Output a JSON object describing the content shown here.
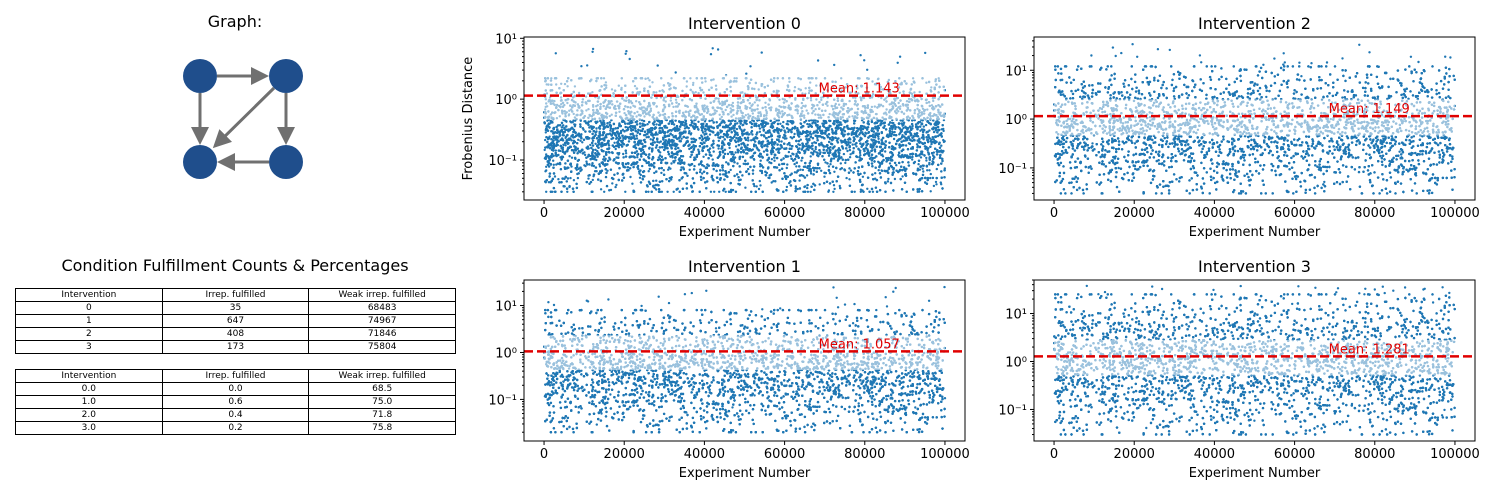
{
  "graph_panel": {
    "title": "Graph:",
    "node_color": "#1f4e8c",
    "edge_color": "#707070",
    "edges": [
      [
        "A",
        "B"
      ],
      [
        "A",
        "C"
      ],
      [
        "B",
        "C"
      ],
      [
        "B",
        "D"
      ],
      [
        "D",
        "C"
      ]
    ]
  },
  "table_panel": {
    "title": "Condition Fulfillment Counts & Percentages",
    "counts": {
      "header": [
        "Intervention",
        "Irrep. fulfilled",
        "Weak irrep. fulfilled"
      ],
      "rows": [
        [
          "0",
          "35",
          "68483"
        ],
        [
          "1",
          "647",
          "74967"
        ],
        [
          "2",
          "408",
          "71846"
        ],
        [
          "3",
          "173",
          "75804"
        ]
      ]
    },
    "percentages": {
      "header": [
        "Intervention",
        "Irrep. fulfilled",
        "Weak irrep. fulfilled"
      ],
      "rows": [
        [
          "0.0",
          "0.0",
          "68.5"
        ],
        [
          "1.0",
          "0.6",
          "75.0"
        ],
        [
          "2.0",
          "0.4",
          "71.8"
        ],
        [
          "3.0",
          "0.2",
          "75.8"
        ]
      ]
    }
  },
  "chart_data": [
    {
      "type": "scatter",
      "title": "Intervention 0",
      "xlabel": "Experiment Number",
      "ylabel": "Frobenius Distance",
      "yscale": "log",
      "xlim": [
        -5000,
        105000
      ],
      "ylim": [
        0.022,
        10.5
      ],
      "y_lo": 0.03,
      "y_hi": 2.2,
      "outlier_max": 7,
      "xticks": [
        0,
        20000,
        40000,
        60000,
        80000,
        100000
      ],
      "yticks": [
        {
          "v": 0.1,
          "label": "10⁻¹"
        },
        {
          "v": 1,
          "label": "10⁰"
        },
        {
          "v": 10,
          "label": "10¹"
        }
      ],
      "n_experiments": 100000,
      "point_color": "#1f77b4",
      "mean": 1.143,
      "mean_label": "Mean: 1.143",
      "mean_color": "#e00000"
    },
    {
      "type": "scatter",
      "title": "Intervention 2",
      "xlabel": "Experiment Number",
      "ylabel": "",
      "yscale": "log",
      "xlim": [
        -5000,
        105000
      ],
      "ylim": [
        0.022,
        48
      ],
      "y_lo": 0.03,
      "y_hi": 12,
      "outlier_max": 35,
      "xticks": [
        0,
        20000,
        40000,
        60000,
        80000,
        100000
      ],
      "yticks": [
        {
          "v": 0.1,
          "label": "10⁻¹"
        },
        {
          "v": 1,
          "label": "10⁰"
        },
        {
          "v": 10,
          "label": "10¹"
        }
      ],
      "n_experiments": 100000,
      "point_color": "#1f77b4",
      "mean": 1.149,
      "mean_label": "Mean: 1.149",
      "mean_color": "#e00000"
    },
    {
      "type": "scatter",
      "title": "Intervention 1",
      "xlabel": "Experiment Number",
      "ylabel": "",
      "yscale": "log",
      "xlim": [
        -5000,
        105000
      ],
      "ylim": [
        0.013,
        35
      ],
      "y_lo": 0.02,
      "y_hi": 8,
      "outlier_max": 25,
      "xticks": [
        0,
        20000,
        40000,
        60000,
        80000,
        100000
      ],
      "yticks": [
        {
          "v": 0.1,
          "label": "10⁻¹"
        },
        {
          "v": 1,
          "label": "10⁰"
        },
        {
          "v": 10,
          "label": "10¹"
        }
      ],
      "n_experiments": 100000,
      "point_color": "#1f77b4",
      "mean": 1.057,
      "mean_label": "Mean: 1.057",
      "mean_color": "#e00000"
    },
    {
      "type": "scatter",
      "title": "Intervention 3",
      "xlabel": "Experiment Number",
      "ylabel": "",
      "yscale": "log",
      "xlim": [
        -5000,
        105000
      ],
      "ylim": [
        0.022,
        50
      ],
      "y_lo": 0.03,
      "y_hi": 25,
      "outlier_max": 38,
      "xticks": [
        0,
        20000,
        40000,
        60000,
        80000,
        100000
      ],
      "yticks": [
        {
          "v": 0.1,
          "label": "10⁻¹"
        },
        {
          "v": 1,
          "label": "10⁰"
        },
        {
          "v": 10,
          "label": "10¹"
        }
      ],
      "n_experiments": 100000,
      "point_color": "#1f77b4",
      "mean": 1.281,
      "mean_label": "Mean: 1.281",
      "mean_color": "#e00000"
    }
  ]
}
